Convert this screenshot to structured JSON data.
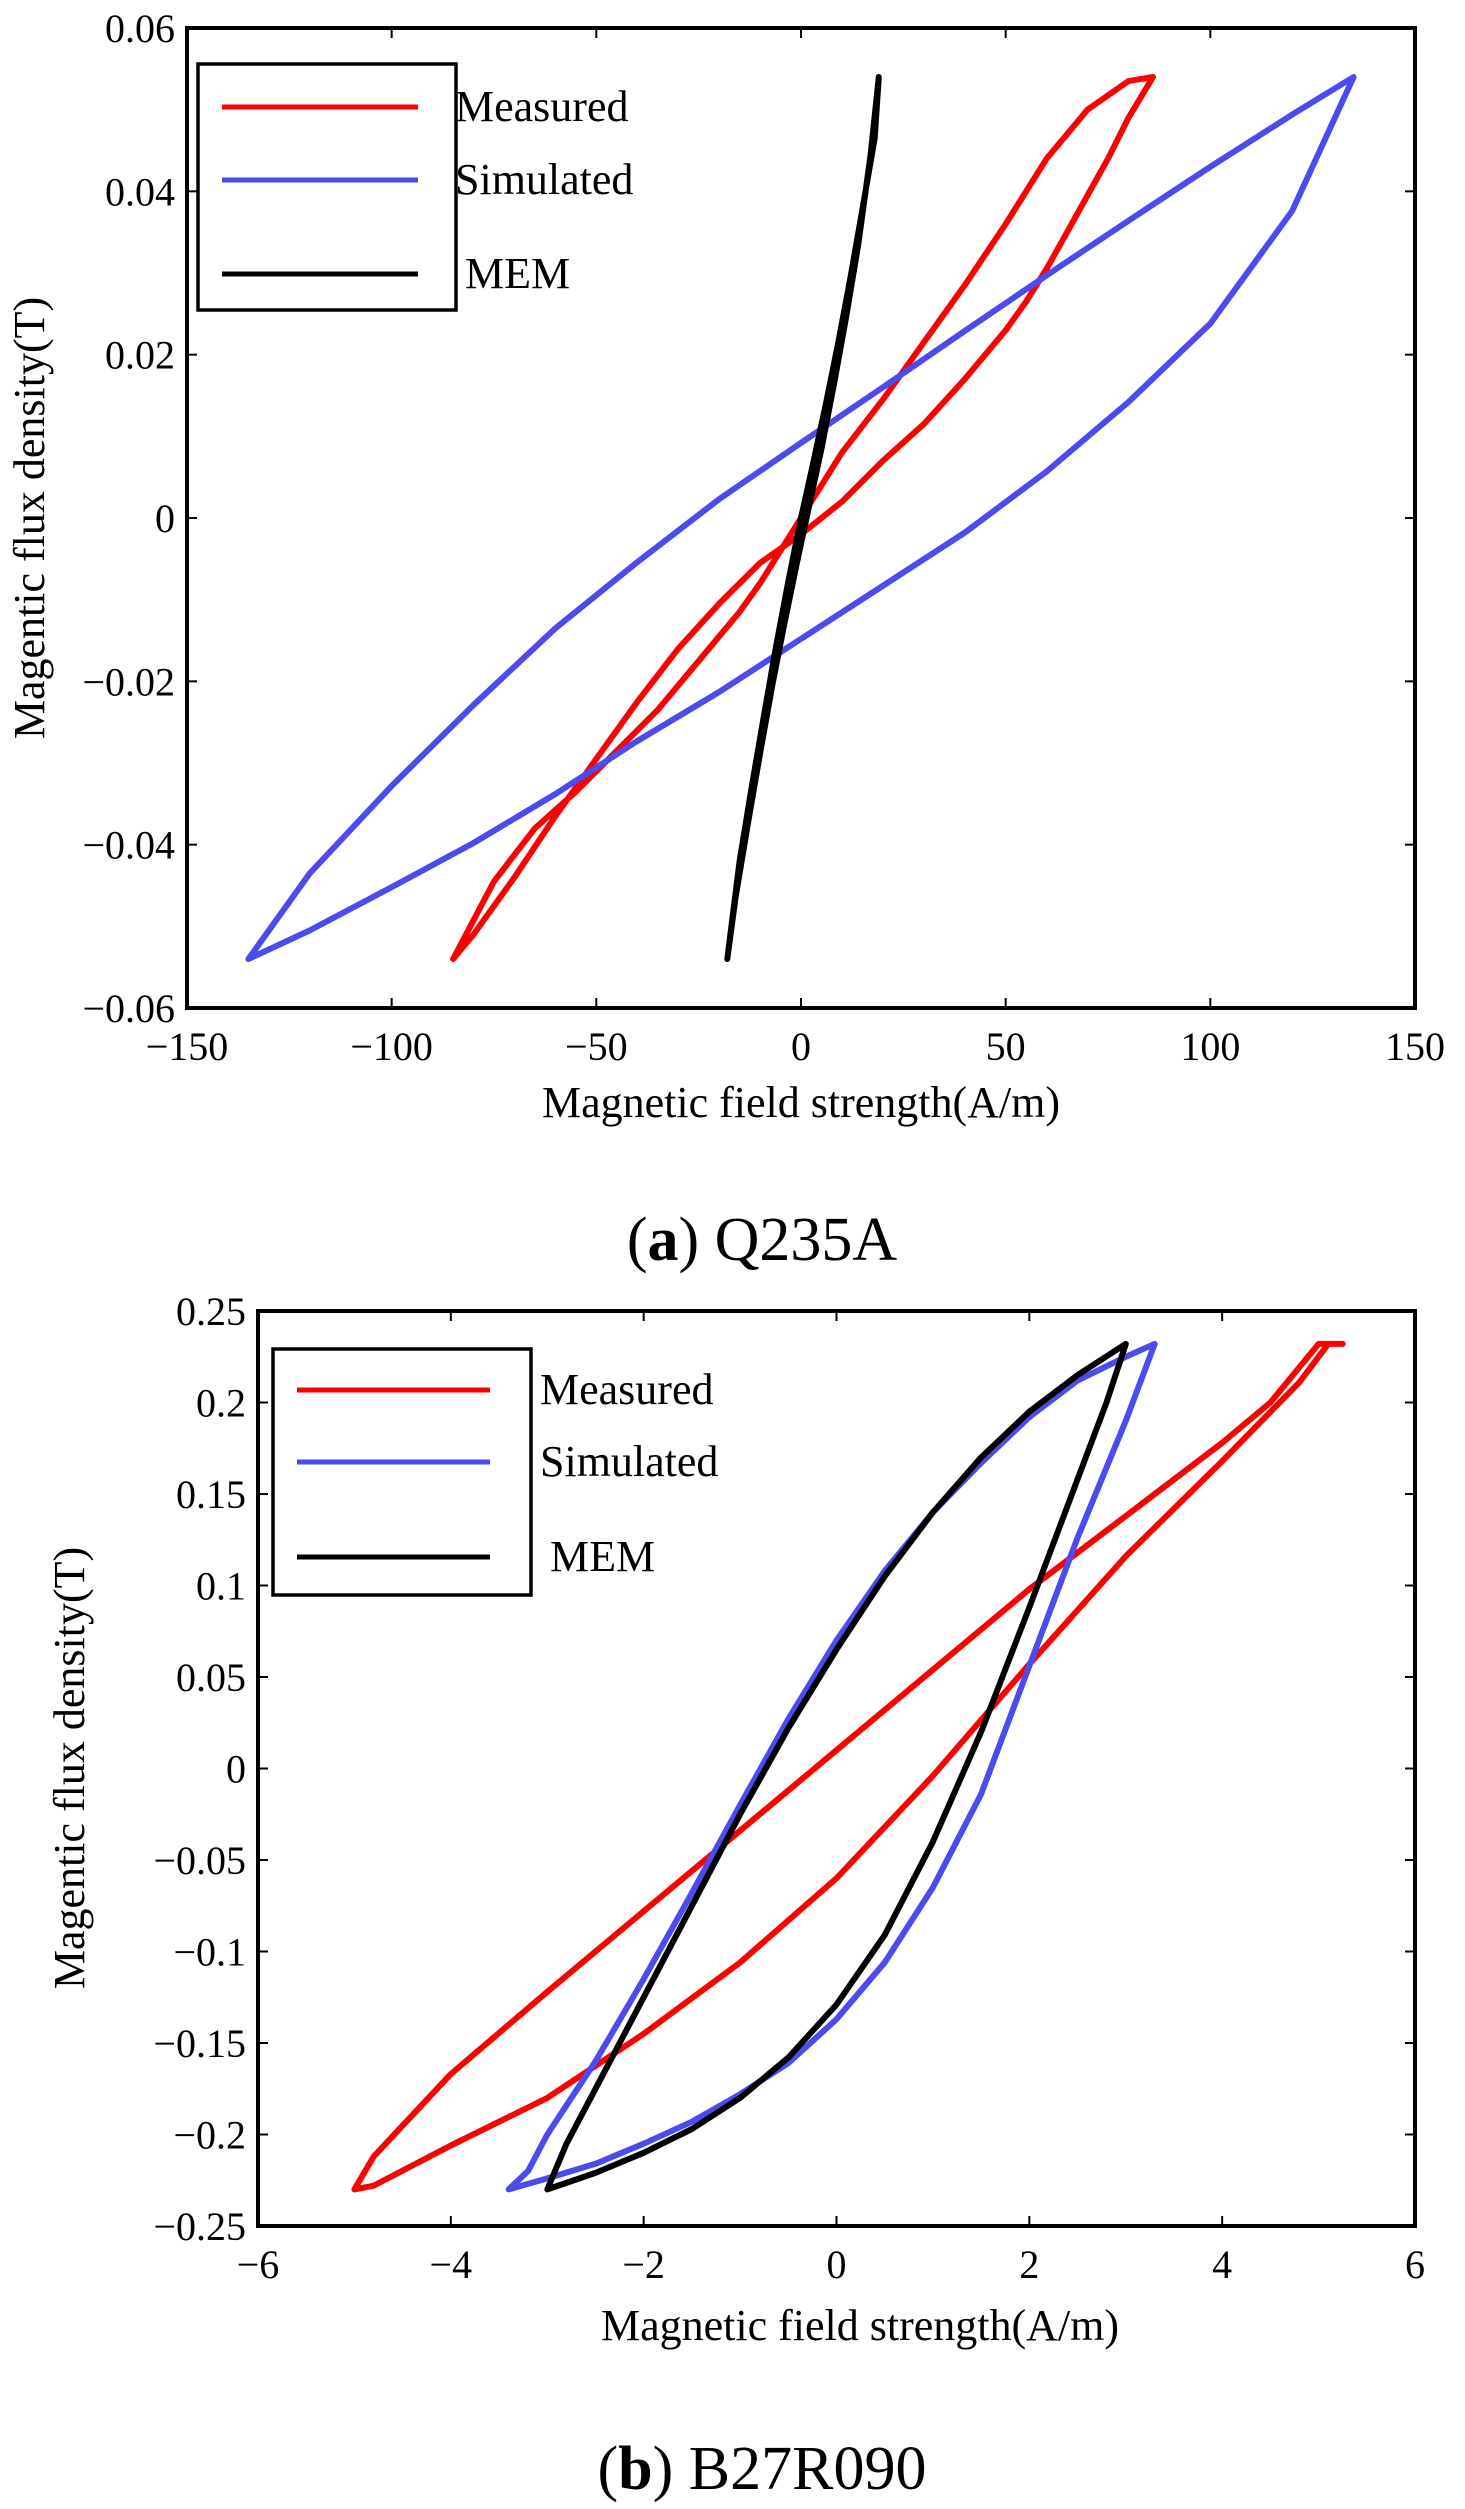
{
  "chart_data": [
    {
      "type": "line",
      "id": "a",
      "caption_letter": "a",
      "caption_text": "Q235A",
      "xlabel": "Magnetic field strength(A/m)",
      "ylabel": "Magentic flux density(T)",
      "xlim": [
        -150,
        150
      ],
      "ylim": [
        -0.06,
        0.06
      ],
      "x_ticks": [
        -150,
        -100,
        -50,
        0,
        50,
        100,
        150
      ],
      "x_tick_labels": [
        "−150",
        "−100",
        "−50",
        "0",
        "50",
        "100",
        "150"
      ],
      "y_ticks": [
        -0.06,
        -0.04,
        -0.02,
        0,
        0.02,
        0.04,
        0.06
      ],
      "y_tick_labels": [
        "−0.06",
        "−0.04",
        "−0.02",
        "0",
        "0.02",
        "0.04",
        "0.06"
      ],
      "grid": false,
      "legend_position": "top-left",
      "series": [
        {
          "name": "Measured",
          "color": "#ff0000",
          "x": [
            -85,
            -75,
            -65,
            -55,
            -45,
            -35,
            -25,
            -20,
            -15,
            -10,
            -5,
            0,
            5,
            10,
            20,
            30,
            40,
            50,
            60,
            70,
            80,
            86,
            80,
            75,
            70,
            65,
            60,
            55,
            50,
            40,
            30,
            20,
            10,
            0,
            -10,
            -20,
            -30,
            -40,
            -50,
            -60,
            -70,
            -80,
            -85
          ],
          "y": [
            -0.054,
            -0.0445,
            -0.038,
            -0.0335,
            -0.0285,
            -0.0235,
            -0.0175,
            -0.0145,
            -0.0115,
            -0.008,
            -0.004,
            0.0,
            0.004,
            0.008,
            0.0145,
            0.0215,
            0.0285,
            0.036,
            0.044,
            0.05,
            0.0535,
            0.054,
            0.049,
            0.044,
            0.0395,
            0.035,
            0.0305,
            0.0265,
            0.023,
            0.017,
            0.0115,
            0.007,
            0.002,
            -0.002,
            -0.0055,
            -0.0105,
            -0.016,
            -0.0225,
            -0.0295,
            -0.0365,
            -0.044,
            -0.051,
            -0.054
          ]
        },
        {
          "name": "Simulated",
          "color": "#4b4bf0",
          "x": [
            -135,
            -120,
            -100,
            -80,
            -60,
            -40,
            -20,
            0,
            20,
            40,
            60,
            80,
            100,
            120,
            135,
            120,
            100,
            80,
            60,
            40,
            20,
            0,
            -20,
            -40,
            -60,
            -80,
            -100,
            -120,
            -135
          ],
          "y": [
            -0.054,
            -0.0505,
            -0.0452,
            -0.0398,
            -0.0338,
            -0.0273,
            -0.0213,
            -0.0148,
            -0.0083,
            -0.0018,
            0.0057,
            0.0142,
            0.0238,
            0.0376,
            0.054,
            0.0494,
            0.043,
            0.0364,
            0.0297,
            0.0229,
            0.016,
            0.0092,
            0.0023,
            -0.0054,
            -0.0135,
            -0.0229,
            -0.0328,
            -0.0435,
            -0.054
          ]
        },
        {
          "name": "MEM",
          "color": "#000000",
          "x": [
            -18,
            -16,
            -13,
            -10,
            -7,
            -4,
            -1,
            2,
            5,
            8,
            11,
            14,
            17,
            19,
            18,
            15,
            12,
            9,
            6,
            3,
            0,
            -3,
            -6,
            -9,
            -12,
            -15,
            -18
          ],
          "y": [
            -0.054,
            -0.0465,
            -0.0375,
            -0.0288,
            -0.0205,
            -0.0128,
            -0.0055,
            0.0015,
            0.0085,
            0.0162,
            0.0245,
            0.0335,
            0.0445,
            0.054,
            0.0465,
            0.0378,
            0.0292,
            0.0212,
            0.0138,
            0.0068,
            0.0,
            -0.0075,
            -0.0155,
            -0.024,
            -0.0328,
            -0.042,
            -0.054
          ]
        }
      ]
    },
    {
      "type": "line",
      "id": "b",
      "caption_letter": "b",
      "caption_text": "B27R090",
      "xlabel": "Magnetic field strength(A/m)",
      "ylabel": "Magentic flux density(T)",
      "xlim": [
        -6,
        6
      ],
      "ylim": [
        -0.25,
        0.25
      ],
      "x_ticks": [
        -6,
        -4,
        -2,
        0,
        2,
        4,
        6
      ],
      "x_tick_labels": [
        "−6",
        "−4",
        "−2",
        "0",
        "2",
        "4",
        "6"
      ],
      "y_ticks": [
        -0.25,
        -0.2,
        -0.15,
        -0.1,
        -0.05,
        0,
        0.05,
        0.1,
        0.15,
        0.2,
        0.25
      ],
      "y_tick_labels": [
        "−0.25",
        "−0.2",
        "−0.15",
        "−0.1",
        "−0.05",
        "0",
        "0.05",
        "0.1",
        "0.15",
        "0.2",
        "0.25"
      ],
      "grid": false,
      "legend_position": "top-left",
      "series": [
        {
          "name": "Measured",
          "color": "#ff0000",
          "x": [
            -5.0,
            -4.8,
            -4.0,
            -3.0,
            -2.0,
            -1.0,
            0.0,
            1.0,
            2.0,
            3.0,
            4.0,
            4.8,
            5.1,
            5.0,
            4.5,
            4.0,
            3.0,
            2.0,
            1.0,
            0.0,
            -1.0,
            -2.0,
            -3.0,
            -4.0,
            -4.8,
            -5.0
          ],
          "y": [
            -0.23,
            -0.228,
            -0.206,
            -0.18,
            -0.145,
            -0.106,
            -0.06,
            -0.004,
            0.057,
            0.116,
            0.168,
            0.211,
            0.232,
            0.232,
            0.2,
            0.178,
            0.138,
            0.098,
            0.054,
            0.01,
            -0.034,
            -0.078,
            -0.122,
            -0.167,
            -0.212,
            -0.23
          ],
          "endcap": [
            [
              5.1,
              0.232
            ],
            [
              5.25,
              0.232
            ]
          ]
        },
        {
          "name": "Simulated",
          "color": "#4b4bf0",
          "x": [
            -3.4,
            -3.2,
            -3.0,
            -2.5,
            -2.0,
            -1.5,
            -1.0,
            -0.5,
            0.0,
            0.5,
            1.0,
            1.5,
            2.0,
            2.5,
            3.0,
            3.3,
            3.0,
            2.5,
            2.0,
            1.5,
            1.0,
            0.5,
            0.0,
            -0.5,
            -1.0,
            -1.5,
            -2.0,
            -2.5,
            -3.0,
            -3.4
          ],
          "y": [
            -0.23,
            -0.22,
            -0.2,
            -0.16,
            -0.115,
            -0.068,
            -0.02,
            0.027,
            0.07,
            0.108,
            0.14,
            0.167,
            0.192,
            0.212,
            0.225,
            0.232,
            0.19,
            0.126,
            0.056,
            -0.014,
            -0.065,
            -0.106,
            -0.137,
            -0.161,
            -0.178,
            -0.193,
            -0.205,
            -0.216,
            -0.224,
            -0.23
          ]
        },
        {
          "name": "MEM",
          "color": "#000000",
          "x": [
            -3.0,
            -2.8,
            -2.5,
            -2.0,
            -1.5,
            -1.0,
            -0.5,
            0.0,
            0.5,
            1.0,
            1.5,
            2.0,
            2.5,
            3.0,
            2.8,
            2.5,
            2.0,
            1.5,
            1.0,
            0.5,
            0.0,
            -0.5,
            -1.0,
            -1.5,
            -2.0,
            -2.5,
            -3.0
          ],
          "y": [
            -0.23,
            -0.205,
            -0.175,
            -0.125,
            -0.075,
            -0.025,
            0.022,
            0.065,
            0.105,
            0.14,
            0.17,
            0.195,
            0.215,
            0.232,
            0.2,
            0.158,
            0.088,
            0.02,
            -0.04,
            -0.091,
            -0.129,
            -0.158,
            -0.18,
            -0.197,
            -0.21,
            -0.221,
            -0.23
          ]
        }
      ]
    }
  ]
}
